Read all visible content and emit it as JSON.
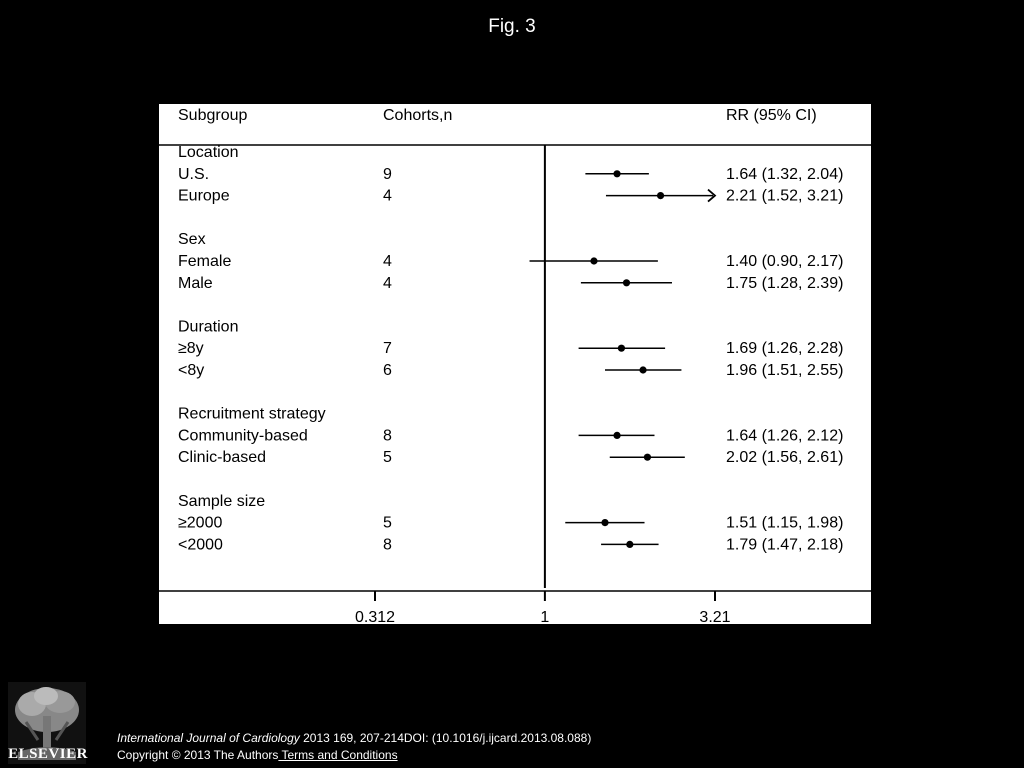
{
  "figure_title": "Fig. 3",
  "citation": {
    "journal": "International Journal of Cardiology",
    "details": " 2013 169, 207-214DOI: (10.1016/j.ijcard.2013.08.088)"
  },
  "copyright": {
    "text": "Copyright © 2013 The Authors",
    "link": " Terms and Conditions"
  },
  "publisher_logo": "ELSEVIER",
  "chart_data": {
    "type": "forest",
    "headers": {
      "subgroup": "Subgroup",
      "cohorts": "Cohorts,n",
      "estimate": "RR (95% CI)"
    },
    "x_axis": {
      "scale": "log",
      "reference_line": 1,
      "ticks": [
        0.312,
        1,
        3.21
      ],
      "tick_labels": [
        "0.312",
        "1",
        "3.21"
      ],
      "range": [
        0.312,
        3.21
      ]
    },
    "groups": [
      {
        "label": "Location",
        "rows": [
          {
            "label": "U.S.",
            "n": "9",
            "rr": 1.64,
            "lo": 1.32,
            "hi": 2.04,
            "text": "1.64 (1.32, 2.04)",
            "truncated_right": false
          },
          {
            "label": "Europe",
            "n": "4",
            "rr": 2.21,
            "lo": 1.52,
            "hi": 3.21,
            "text": "2.21 (1.52, 3.21)",
            "truncated_right": true
          }
        ]
      },
      {
        "label": "Sex",
        "rows": [
          {
            "label": "Female",
            "n": "4",
            "rr": 1.4,
            "lo": 0.9,
            "hi": 2.17,
            "text": "1.40 (0.90, 2.17)",
            "truncated_right": false
          },
          {
            "label": "Male",
            "n": "4",
            "rr": 1.75,
            "lo": 1.28,
            "hi": 2.39,
            "text": "1.75 (1.28, 2.39)",
            "truncated_right": false
          }
        ]
      },
      {
        "label": "Duration",
        "rows": [
          {
            "label": "≥8y",
            "n": "7",
            "rr": 1.69,
            "lo": 1.26,
            "hi": 2.28,
            "text": "1.69 (1.26, 2.28)",
            "truncated_right": false
          },
          {
            "label": "<8y",
            "n": "6",
            "rr": 1.96,
            "lo": 1.51,
            "hi": 2.55,
            "text": "1.96 (1.51, 2.55)",
            "truncated_right": false
          }
        ]
      },
      {
        "label": "Recruitment strategy",
        "rows": [
          {
            "label": "Community-based",
            "n": "8",
            "rr": 1.64,
            "lo": 1.26,
            "hi": 2.12,
            "text": "1.64 (1.26, 2.12)",
            "truncated_right": false
          },
          {
            "label": "Clinic-based",
            "n": "5",
            "rr": 2.02,
            "lo": 1.56,
            "hi": 2.61,
            "text": "2.02 (1.56, 2.61)",
            "truncated_right": false
          }
        ]
      },
      {
        "label": "Sample size",
        "rows": [
          {
            "label": "≥2000",
            "n": "5",
            "rr": 1.51,
            "lo": 1.15,
            "hi": 1.98,
            "text": "1.51 (1.15, 1.98)",
            "truncated_right": false
          },
          {
            "label": "<2000",
            "n": "8",
            "rr": 1.79,
            "lo": 1.47,
            "hi": 2.18,
            "text": "1.79 (1.47, 2.18)",
            "truncated_right": false
          }
        ]
      }
    ]
  }
}
